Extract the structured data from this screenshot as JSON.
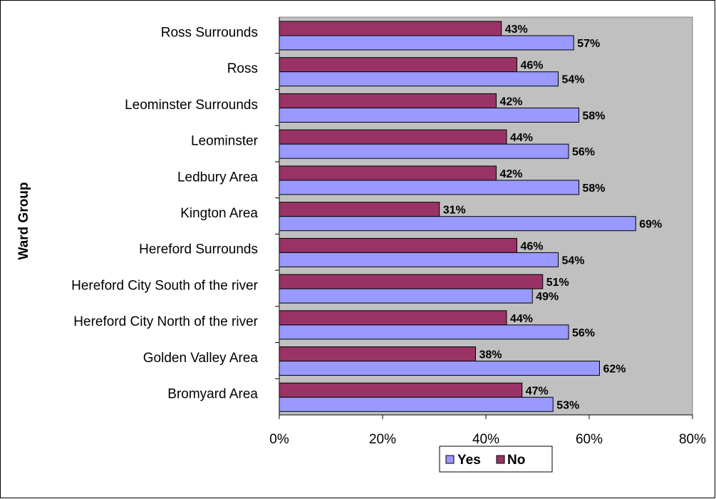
{
  "chart_data": {
    "type": "bar",
    "orientation": "horizontal",
    "ylabel": "Ward Group",
    "categories": [
      "Ross Surrounds",
      "Ross",
      "Leominster Surrounds",
      "Leominster",
      "Ledbury Area",
      "Kington Area",
      "Hereford Surrounds",
      "Hereford City South of the river",
      "Hereford City North of the river",
      "Golden Valley Area",
      "Bromyard Area"
    ],
    "series": [
      {
        "name": "No",
        "color": "#993366",
        "values": [
          43,
          46,
          42,
          44,
          42,
          31,
          46,
          51,
          44,
          38,
          47
        ]
      },
      {
        "name": "Yes",
        "color": "#9999ff",
        "values": [
          57,
          54,
          58,
          56,
          58,
          69,
          54,
          49,
          56,
          62,
          53
        ]
      }
    ],
    "data_labels": {
      "No": [
        "43%",
        "46%",
        "42%",
        "44%",
        "42%",
        "31%",
        "46%",
        "51%",
        "44%",
        "38%",
        "47%"
      ],
      "Yes": [
        "57%",
        "54%",
        "58%",
        "56%",
        "58%",
        "69%",
        "54%",
        "49%",
        "56%",
        "62%",
        "53%"
      ]
    },
    "xlim": [
      0,
      80
    ],
    "xticks": [
      0,
      20,
      40,
      60,
      80
    ],
    "xtick_labels": [
      "0%",
      "20%",
      "40%",
      "60%",
      "80%"
    ],
    "legend": [
      "Yes",
      "No"
    ],
    "legend_position": "bottom",
    "plot_background": "#c0c0c0",
    "grid": false
  }
}
